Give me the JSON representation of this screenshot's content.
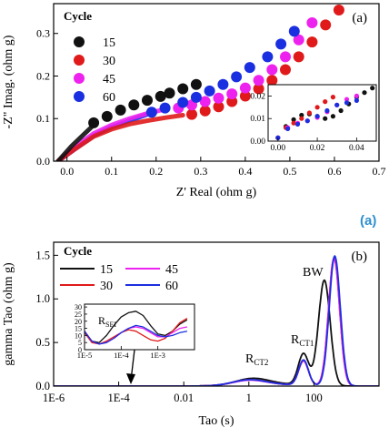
{
  "colors": {
    "c15": "#111111",
    "c30": "#e01a1a",
    "c45": "#ee22ee",
    "c60": "#1a2fe0",
    "panel_tag": "#2e8fd0"
  },
  "panel_tag": "(a)",
  "chart_data": [
    {
      "type": "scatter",
      "panel_label": "(a)",
      "xlabel": "Z' Real (ohm g)",
      "ylabel": "-Z\" Imag. (ohm g)",
      "xlim": [
        -0.03,
        0.7
      ],
      "ylim": [
        0,
        0.37
      ],
      "xticks": [
        "0.0",
        "0.1",
        "0.2",
        "0.3",
        "0.4",
        "0.5",
        "0.6",
        "0.7"
      ],
      "yticks": [
        "0.0",
        "0.1",
        "0.2",
        "0.3"
      ],
      "legend_title": "Cycle",
      "legend_position": "top-left",
      "series": [
        {
          "name": "15",
          "color": "#111111",
          "x": [
            0.06,
            0.09,
            0.12,
            0.15,
            0.18,
            0.21,
            0.23,
            0.26,
            0.29
          ],
          "y": [
            0.09,
            0.105,
            0.12,
            0.132,
            0.143,
            0.152,
            0.16,
            0.17,
            0.18
          ]
        },
        {
          "name": "30",
          "color": "#e01a1a",
          "x": [
            0.28,
            0.31,
            0.34,
            0.37,
            0.4,
            0.43,
            0.46,
            0.49,
            0.52,
            0.55,
            0.58,
            0.61
          ],
          "y": [
            0.11,
            0.118,
            0.128,
            0.14,
            0.153,
            0.17,
            0.19,
            0.215,
            0.245,
            0.28,
            0.32,
            0.355
          ]
        },
        {
          "name": "45",
          "color": "#ee22ee",
          "x": [
            0.25,
            0.28,
            0.31,
            0.34,
            0.37,
            0.4,
            0.43,
            0.46,
            0.49,
            0.52,
            0.55
          ],
          "y": [
            0.125,
            0.132,
            0.14,
            0.148,
            0.158,
            0.172,
            0.19,
            0.215,
            0.245,
            0.285,
            0.325
          ]
        },
        {
          "name": "60",
          "color": "#1a2fe0",
          "x": [
            0.19,
            0.22,
            0.26,
            0.29,
            0.32,
            0.35,
            0.38,
            0.41,
            0.45,
            0.48,
            0.51
          ],
          "y": [
            0.115,
            0.125,
            0.138,
            0.15,
            0.165,
            0.18,
            0.198,
            0.22,
            0.245,
            0.275,
            0.305
          ]
        }
      ],
      "line_segments": [
        {
          "color": "#1a2fe0",
          "x": [
            -0.02,
            0.02,
            0.06,
            0.1,
            0.14,
            0.18
          ],
          "y": [
            0.0,
            0.03,
            0.06,
            0.08,
            0.095,
            0.11
          ]
        },
        {
          "color": "#ee22ee",
          "x": [
            -0.02,
            0.02,
            0.06,
            0.1,
            0.14,
            0.18,
            0.22
          ],
          "y": [
            0.0,
            0.035,
            0.065,
            0.085,
            0.1,
            0.112,
            0.122
          ]
        },
        {
          "color": "#e01a1a",
          "x": [
            -0.02,
            0.02,
            0.06,
            0.1,
            0.14,
            0.18,
            0.22,
            0.26
          ],
          "y": [
            0.0,
            0.03,
            0.058,
            0.075,
            0.087,
            0.095,
            0.102,
            0.108
          ]
        },
        {
          "color": "#111111",
          "x": [
            -0.02,
            0.01,
            0.04,
            0.06
          ],
          "y": [
            0.0,
            0.035,
            0.065,
            0.085
          ]
        }
      ],
      "inset": {
        "xlim": [
          -0.005,
          0.05
        ],
        "ylim": [
          0,
          0.025
        ],
        "xticks": [
          "0.00",
          "0.02",
          "0.04"
        ],
        "yticks": [
          "0.00",
          "0.01",
          "0.02"
        ],
        "series": [
          {
            "name": "15",
            "color": "#111111",
            "x": [
              0.0,
              0.004,
              0.008,
              0.012,
              0.016,
              0.02,
              0.024,
              0.028,
              0.032,
              0.036,
              0.04,
              0.044,
              0.048
            ],
            "y": [
              0.0015,
              0.0065,
              0.0095,
              0.0115,
              0.012,
              0.011,
              0.01,
              0.011,
              0.0135,
              0.0165,
              0.0195,
              0.0215,
              0.0235
            ]
          },
          {
            "name": "30",
            "color": "#e01a1a",
            "x": [
              0.0,
              0.004,
              0.008,
              0.012,
              0.016,
              0.02,
              0.024,
              0.028
            ],
            "y": [
              0.0015,
              0.006,
              0.008,
              0.01,
              0.0125,
              0.015,
              0.0175,
              0.0195
            ]
          },
          {
            "name": "45",
            "color": "#ee22ee",
            "x": [
              0.0,
              0.005,
              0.01,
              0.015,
              0.02,
              0.025,
              0.03,
              0.035,
              0.04
            ],
            "y": [
              0.0015,
              0.006,
              0.008,
              0.009,
              0.0105,
              0.013,
              0.016,
              0.0185,
              0.02
            ]
          },
          {
            "name": "60",
            "color": "#1a2fe0",
            "x": [
              0.0,
              0.005,
              0.01,
              0.015,
              0.02,
              0.025,
              0.03,
              0.035,
              0.04
            ],
            "y": [
              0.0015,
              0.0055,
              0.0075,
              0.009,
              0.011,
              0.0135,
              0.016,
              0.017,
              0.018
            ]
          }
        ]
      }
    },
    {
      "type": "line",
      "panel_label": "(b)",
      "xlabel": "Tao (s)",
      "ylabel": "gamma Tao (ohm g)",
      "xscale": "log",
      "xlim": [
        1e-06,
        10000
      ],
      "ylim": [
        0,
        1.65
      ],
      "xticks": [
        "1E-6",
        "1E-4",
        "0.01",
        "1",
        "100"
      ],
      "yticks": [
        "0.0",
        "0.5",
        "1.0",
        "1.5"
      ],
      "legend_title": "Cycle",
      "legend_position": "top-left",
      "annotations": [
        {
          "text": "BW"
        },
        {
          "text": "R",
          "sub": "CT1"
        },
        {
          "text": "R",
          "sub": "CT2"
        }
      ],
      "series": [
        {
          "name": "15",
          "color": "#111111",
          "peaks": [
            {
              "logx": 0.1,
              "h": 0.07,
              "w": 0.5
            },
            {
              "logx": 1.68,
              "h": 0.36,
              "w": 0.16
            },
            {
              "logx": 2.32,
              "h": 1.21,
              "w": 0.18
            }
          ],
          "tail": 0.08
        },
        {
          "name": "30",
          "color": "#e01a1a",
          "peaks": [
            {
              "logx": 0.0,
              "h": 0.06,
              "w": 0.5
            },
            {
              "logx": 1.68,
              "h": 0.28,
              "w": 0.15
            },
            {
              "logx": 2.62,
              "h": 1.46,
              "w": 0.17
            }
          ],
          "tail": 0.06
        },
        {
          "name": "45",
          "color": "#ee22ee",
          "peaks": [
            {
              "logx": 0.0,
              "h": 0.055,
              "w": 0.5
            },
            {
              "logx": 1.68,
              "h": 0.28,
              "w": 0.15
            },
            {
              "logx": 2.62,
              "h": 1.47,
              "w": 0.17
            }
          ],
          "tail": 0.06
        },
        {
          "name": "60",
          "color": "#1a2fe0",
          "peaks": [
            {
              "logx": 0.0,
              "h": 0.06,
              "w": 0.5
            },
            {
              "logx": 1.68,
              "h": 0.29,
              "w": 0.15
            },
            {
              "logx": 2.64,
              "h": 1.49,
              "w": 0.17
            }
          ],
          "tail": 0.06
        }
      ],
      "inset": {
        "xscale": "log",
        "xlim": [
          1e-05,
          0.01
        ],
        "ylim": [
          0,
          32
        ],
        "xticks": [
          "1E-5",
          "1E-4",
          "1E-3"
        ],
        "yticks": [
          "0",
          "5",
          "10",
          "15",
          "20",
          "25",
          "30"
        ],
        "annotation": {
          "text": "R",
          "sub": "SEI"
        },
        "series": [
          {
            "name": "15",
            "color": "#111111",
            "points": [
              [
                -5.0,
                12
              ],
              [
                -4.8,
                6
              ],
              [
                -4.6,
                5
              ],
              [
                -4.4,
                10
              ],
              [
                -4.2,
                17
              ],
              [
                -4.0,
                23
              ],
              [
                -3.8,
                26
              ],
              [
                -3.6,
                27
              ],
              [
                -3.4,
                24
              ],
              [
                -3.2,
                17
              ],
              [
                -3.0,
                11
              ],
              [
                -2.8,
                10
              ],
              [
                -2.6,
                13
              ],
              [
                -2.4,
                18
              ],
              [
                -2.2,
                21
              ]
            ]
          },
          {
            "name": "30",
            "color": "#e01a1a",
            "points": [
              [
                -5.0,
                12
              ],
              [
                -4.8,
                5
              ],
              [
                -4.6,
                4
              ],
              [
                -4.4,
                6
              ],
              [
                -4.2,
                9
              ],
              [
                -4.0,
                12
              ],
              [
                -3.8,
                14
              ],
              [
                -3.6,
                13
              ],
              [
                -3.4,
                10
              ],
              [
                -3.2,
                7
              ],
              [
                -3.0,
                6
              ],
              [
                -2.8,
                8
              ],
              [
                -2.6,
                13
              ],
              [
                -2.4,
                19
              ],
              [
                -2.2,
                22
              ]
            ]
          },
          {
            "name": "45",
            "color": "#ee22ee",
            "points": [
              [
                -5.0,
                13
              ],
              [
                -4.8,
                6
              ],
              [
                -4.6,
                4
              ],
              [
                -4.4,
                5
              ],
              [
                -4.2,
                8
              ],
              [
                -4.0,
                12
              ],
              [
                -3.8,
                15
              ],
              [
                -3.6,
                16
              ],
              [
                -3.4,
                15
              ],
              [
                -3.2,
                12
              ],
              [
                -3.0,
                9
              ],
              [
                -2.8,
                9
              ],
              [
                -2.6,
                12
              ],
              [
                -2.4,
                15
              ],
              [
                -2.2,
                16
              ]
            ]
          },
          {
            "name": "60",
            "color": "#1a2fe0",
            "points": [
              [
                -5.0,
                13
              ],
              [
                -4.8,
                6
              ],
              [
                -4.6,
                4
              ],
              [
                -4.4,
                5
              ],
              [
                -4.2,
                8
              ],
              [
                -4.0,
                12
              ],
              [
                -3.8,
                15
              ],
              [
                -3.6,
                17
              ],
              [
                -3.4,
                16
              ],
              [
                -3.2,
                13
              ],
              [
                -3.0,
                10
              ],
              [
                -2.8,
                9
              ],
              [
                -2.6,
                10
              ],
              [
                -2.4,
                12
              ],
              [
                -2.2,
                13
              ]
            ]
          }
        ]
      }
    }
  ]
}
